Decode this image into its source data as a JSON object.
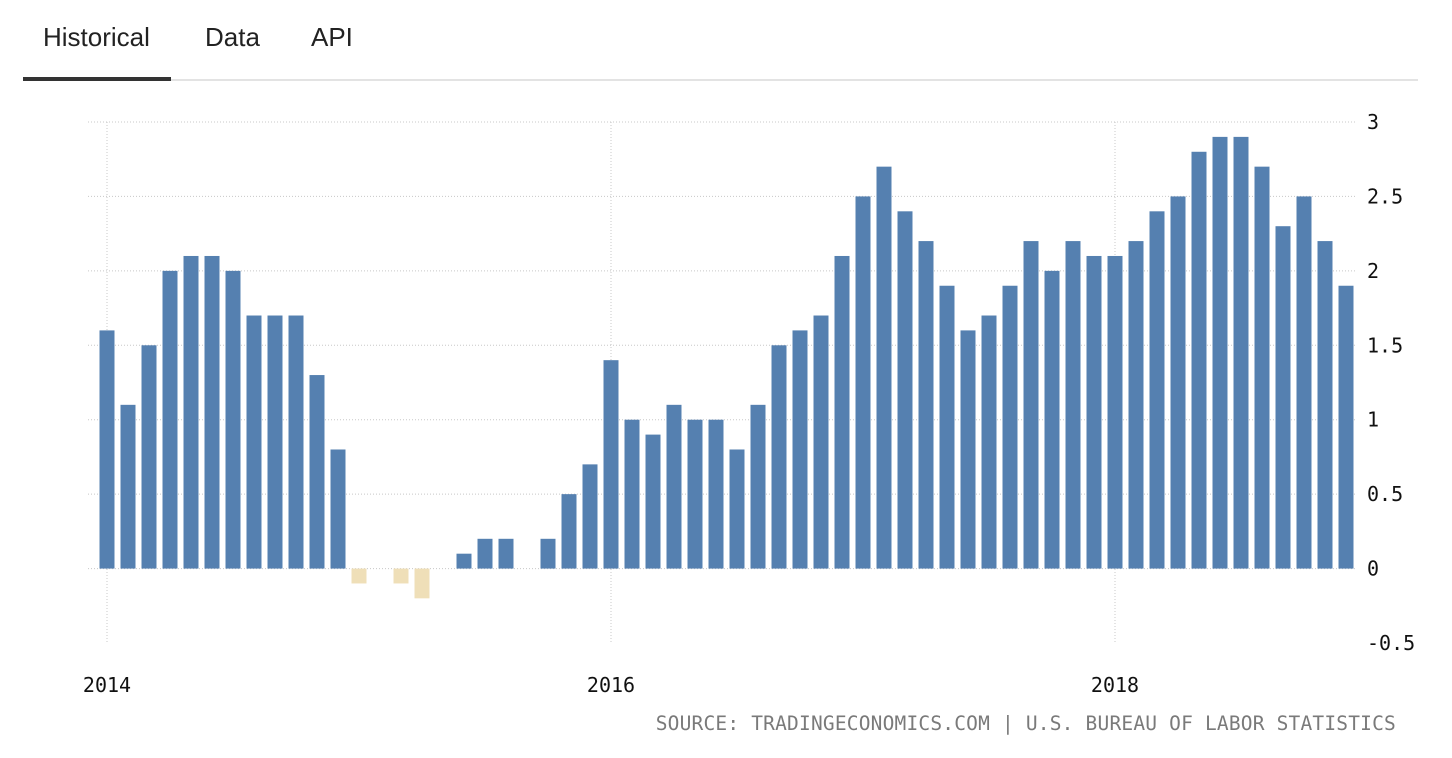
{
  "tabs": [
    {
      "label": "Historical",
      "active": true
    },
    {
      "label": "Data",
      "active": false
    },
    {
      "label": "API",
      "active": false
    }
  ],
  "source": "SOURCE: TRADINGECONOMICS.COM | U.S. BUREAU OF LABOR STATISTICS",
  "colors": {
    "positive": "#5580b0",
    "negative": "#efdfb8",
    "grid": "#c8c8c8",
    "axis_text": "#111111"
  },
  "chart_data": {
    "type": "bar",
    "title": "",
    "xlabel": "",
    "ylabel": "",
    "ylim": [
      -0.5,
      3
    ],
    "yticks": [
      3,
      2.5,
      2,
      1.5,
      1,
      0.5,
      0,
      -0.5
    ],
    "ytick_labels": [
      "3",
      "2.5",
      "2",
      "1.5",
      "1",
      "0.5",
      "0",
      "-0.5"
    ],
    "xticks": [
      {
        "label": "2014",
        "date": "2014-01"
      },
      {
        "label": "2016",
        "date": "2016-01"
      },
      {
        "label": "2018",
        "date": "2018-01"
      }
    ],
    "grid": true,
    "legend": false,
    "categories": [
      "2014-01",
      "2014-02",
      "2014-03",
      "2014-04",
      "2014-05",
      "2014-06",
      "2014-07",
      "2014-08",
      "2014-09",
      "2014-10",
      "2014-11",
      "2014-12",
      "2015-01",
      "2015-02",
      "2015-03",
      "2015-04",
      "2015-05",
      "2015-06",
      "2015-07",
      "2015-08",
      "2015-09",
      "2015-10",
      "2015-11",
      "2015-12",
      "2016-01",
      "2016-02",
      "2016-03",
      "2016-04",
      "2016-05",
      "2016-06",
      "2016-07",
      "2016-08",
      "2016-09",
      "2016-10",
      "2016-11",
      "2016-12",
      "2017-01",
      "2017-02",
      "2017-03",
      "2017-04",
      "2017-05",
      "2017-06",
      "2017-07",
      "2017-08",
      "2017-09",
      "2017-10",
      "2017-11",
      "2017-12",
      "2018-01",
      "2018-02",
      "2018-03",
      "2018-04",
      "2018-05",
      "2018-06",
      "2018-07",
      "2018-08",
      "2018-09",
      "2018-10",
      "2018-11",
      "2018-12"
    ],
    "values": [
      1.6,
      1.1,
      1.5,
      2.0,
      2.1,
      2.1,
      2.0,
      1.7,
      1.7,
      1.7,
      1.3,
      0.8,
      -0.1,
      0.0,
      -0.1,
      -0.2,
      0.0,
      0.1,
      0.2,
      0.2,
      0.0,
      0.2,
      0.5,
      0.7,
      1.4,
      1.0,
      0.9,
      1.1,
      1.0,
      1.0,
      0.8,
      1.1,
      1.5,
      1.6,
      1.7,
      2.1,
      2.5,
      2.7,
      2.4,
      2.2,
      1.9,
      1.6,
      1.7,
      1.9,
      2.2,
      2.0,
      2.2,
      2.1,
      2.1,
      2.2,
      2.4,
      2.5,
      2.8,
      2.9,
      2.9,
      2.7,
      2.3,
      2.5,
      2.2,
      1.9
    ]
  }
}
